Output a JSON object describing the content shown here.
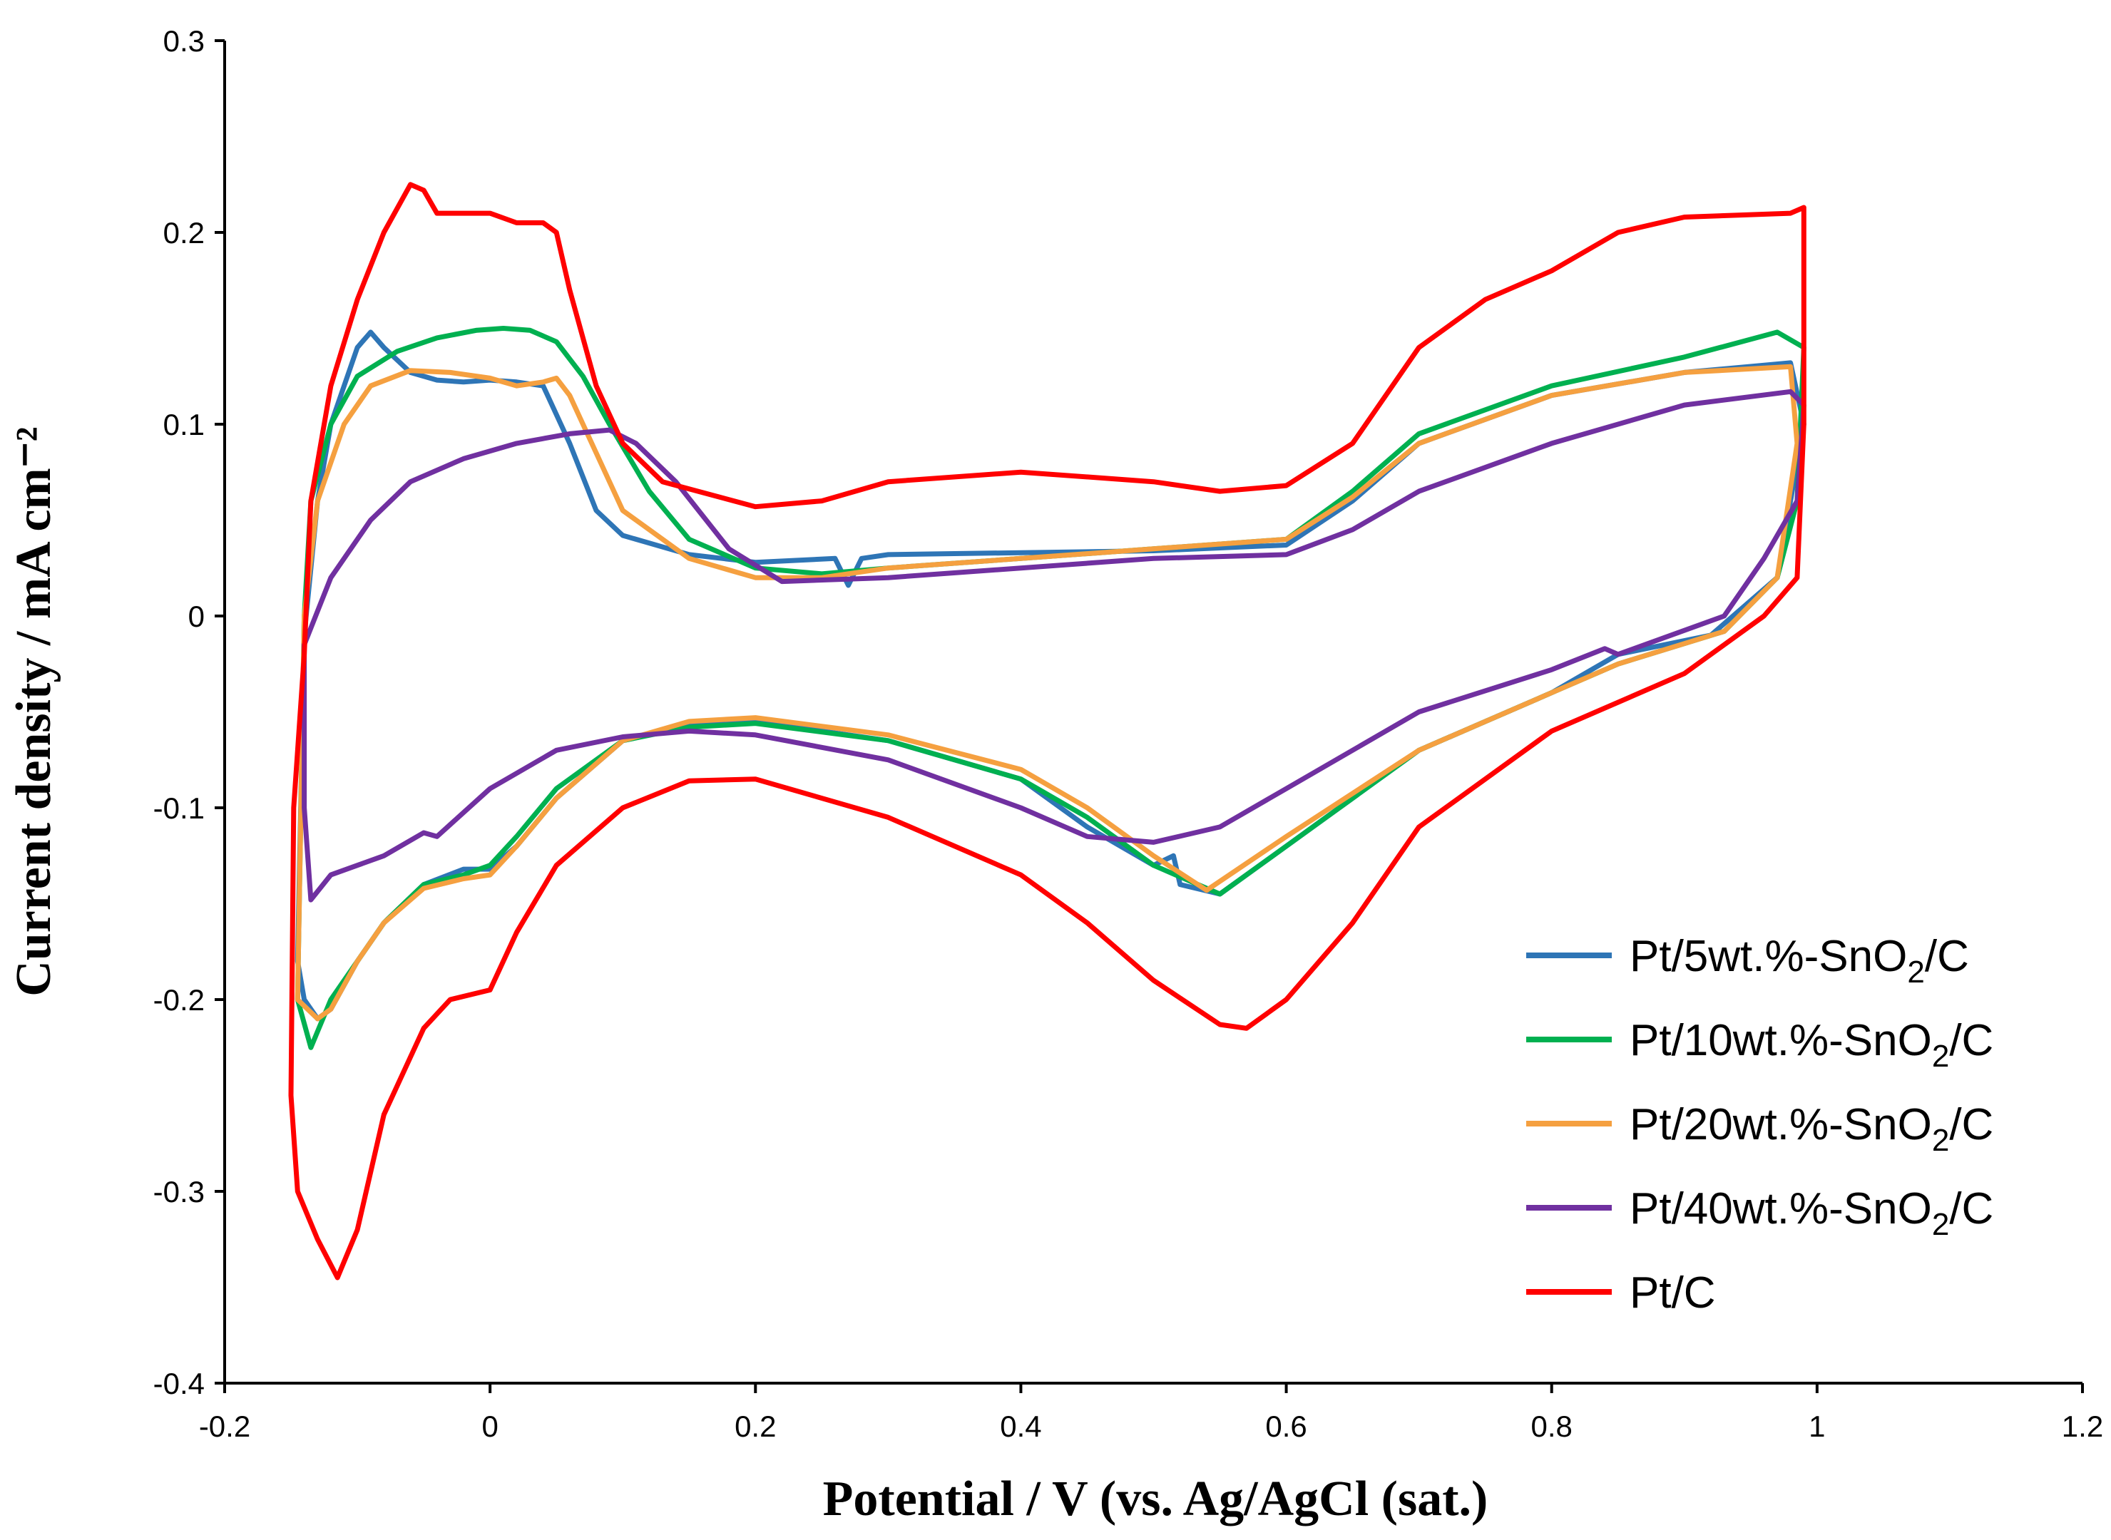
{
  "chart_data": {
    "type": "line",
    "title": "",
    "xlabel": "Potential / V (vs. Ag/AgCl (sat.)",
    "ylabel": "Current density / mA cm⁻²",
    "xlim": [
      -0.2,
      1.2
    ],
    "ylim": [
      -0.4,
      0.3
    ],
    "xticks": [
      "-0.2",
      "0",
      "0.2",
      "0.4",
      "0.6",
      "0.8",
      "1",
      "1.2"
    ],
    "yticks": [
      "0.3",
      "0.2",
      "0.1",
      "0",
      "-0.1",
      "-0.2",
      "-0.3",
      "-0.4"
    ],
    "grid": false,
    "legend_position": "bottom-right",
    "series": [
      {
        "name": "Pt/5wt.%-SnO₂/C",
        "label_main": "Pt/5wt.%-SnO",
        "label_sub": "2",
        "label_tail": "/C",
        "color": "#2e75b6",
        "points": [
          [
            -0.14,
            -0.01
          ],
          [
            -0.13,
            0.06
          ],
          [
            -0.12,
            0.1
          ],
          [
            -0.1,
            0.14
          ],
          [
            -0.09,
            0.148
          ],
          [
            -0.08,
            0.14
          ],
          [
            -0.06,
            0.127
          ],
          [
            -0.04,
            0.123
          ],
          [
            -0.02,
            0.122
          ],
          [
            0,
            0.123
          ],
          [
            0.02,
            0.122
          ],
          [
            0.04,
            0.12
          ],
          [
            0.06,
            0.09
          ],
          [
            0.08,
            0.055
          ],
          [
            0.1,
            0.042
          ],
          [
            0.15,
            0.032
          ],
          [
            0.2,
            0.028
          ],
          [
            0.26,
            0.03
          ],
          [
            0.27,
            0.016
          ],
          [
            0.28,
            0.03
          ],
          [
            0.3,
            0.032
          ],
          [
            0.4,
            0.033
          ],
          [
            0.5,
            0.034
          ],
          [
            0.6,
            0.037
          ],
          [
            0.65,
            0.06
          ],
          [
            0.7,
            0.09
          ],
          [
            0.8,
            0.115
          ],
          [
            0.9,
            0.127
          ],
          [
            0.98,
            0.132
          ],
          [
            0.99,
            0.1
          ],
          [
            0.97,
            0.02
          ],
          [
            0.92,
            -0.01
          ],
          [
            0.85,
            -0.02
          ],
          [
            0.8,
            -0.04
          ],
          [
            0.7,
            -0.07
          ],
          [
            0.6,
            -0.12
          ],
          [
            0.55,
            -0.145
          ],
          [
            0.52,
            -0.14
          ],
          [
            0.515,
            -0.125
          ],
          [
            0.5,
            -0.13
          ],
          [
            0.45,
            -0.11
          ],
          [
            0.4,
            -0.085
          ],
          [
            0.3,
            -0.065
          ],
          [
            0.2,
            -0.055
          ],
          [
            0.15,
            -0.057
          ],
          [
            0.1,
            -0.065
          ],
          [
            0.05,
            -0.095
          ],
          [
            0.02,
            -0.12
          ],
          [
            0,
            -0.132
          ],
          [
            -0.02,
            -0.132
          ],
          [
            -0.05,
            -0.14
          ],
          [
            -0.08,
            -0.16
          ],
          [
            -0.1,
            -0.18
          ],
          [
            -0.12,
            -0.205
          ],
          [
            -0.13,
            -0.21
          ],
          [
            -0.14,
            -0.2
          ],
          [
            -0.145,
            -0.18
          ],
          [
            -0.14,
            -0.01
          ]
        ]
      },
      {
        "name": "Pt/10wt.%-SnO₂/C",
        "label_main": "Pt/10wt.%-SnO",
        "label_sub": "2",
        "label_tail": "/C",
        "color": "#00b050",
        "points": [
          [
            -0.14,
            0.0
          ],
          [
            -0.135,
            0.06
          ],
          [
            -0.12,
            0.1
          ],
          [
            -0.1,
            0.125
          ],
          [
            -0.07,
            0.138
          ],
          [
            -0.04,
            0.145
          ],
          [
            -0.01,
            0.149
          ],
          [
            0.01,
            0.15
          ],
          [
            0.03,
            0.149
          ],
          [
            0.05,
            0.143
          ],
          [
            0.07,
            0.125
          ],
          [
            0.09,
            0.1
          ],
          [
            0.12,
            0.065
          ],
          [
            0.15,
            0.04
          ],
          [
            0.2,
            0.025
          ],
          [
            0.25,
            0.022
          ],
          [
            0.3,
            0.025
          ],
          [
            0.4,
            0.03
          ],
          [
            0.5,
            0.035
          ],
          [
            0.6,
            0.04
          ],
          [
            0.65,
            0.065
          ],
          [
            0.7,
            0.095
          ],
          [
            0.8,
            0.12
          ],
          [
            0.9,
            0.135
          ],
          [
            0.97,
            0.148
          ],
          [
            0.99,
            0.14
          ],
          [
            0.985,
            0.06
          ],
          [
            0.97,
            0.02
          ],
          [
            0.93,
            -0.008
          ],
          [
            0.85,
            -0.025
          ],
          [
            0.8,
            -0.04
          ],
          [
            0.7,
            -0.07
          ],
          [
            0.6,
            -0.12
          ],
          [
            0.55,
            -0.145
          ],
          [
            0.5,
            -0.13
          ],
          [
            0.45,
            -0.105
          ],
          [
            0.4,
            -0.085
          ],
          [
            0.3,
            -0.065
          ],
          [
            0.2,
            -0.056
          ],
          [
            0.15,
            -0.058
          ],
          [
            0.1,
            -0.065
          ],
          [
            0.05,
            -0.09
          ],
          [
            0.02,
            -0.115
          ],
          [
            0,
            -0.13
          ],
          [
            -0.02,
            -0.135
          ],
          [
            -0.05,
            -0.14
          ],
          [
            -0.08,
            -0.16
          ],
          [
            -0.1,
            -0.18
          ],
          [
            -0.12,
            -0.2
          ],
          [
            -0.135,
            -0.225
          ],
          [
            -0.145,
            -0.2
          ],
          [
            -0.14,
            0.0
          ]
        ]
      },
      {
        "name": "Pt/20wt.%-SnO₂/C",
        "label_main": "Pt/20wt.%-SnO",
        "label_sub": "2",
        "label_tail": "/C",
        "color": "#f5a040",
        "points": [
          [
            -0.14,
            0.0
          ],
          [
            -0.13,
            0.06
          ],
          [
            -0.11,
            0.1
          ],
          [
            -0.09,
            0.12
          ],
          [
            -0.06,
            0.128
          ],
          [
            -0.03,
            0.127
          ],
          [
            0,
            0.124
          ],
          [
            0.02,
            0.12
          ],
          [
            0.04,
            0.122
          ],
          [
            0.05,
            0.124
          ],
          [
            0.06,
            0.115
          ],
          [
            0.08,
            0.085
          ],
          [
            0.1,
            0.055
          ],
          [
            0.15,
            0.03
          ],
          [
            0.2,
            0.02
          ],
          [
            0.25,
            0.02
          ],
          [
            0.3,
            0.025
          ],
          [
            0.4,
            0.03
          ],
          [
            0.5,
            0.035
          ],
          [
            0.6,
            0.04
          ],
          [
            0.65,
            0.062
          ],
          [
            0.7,
            0.09
          ],
          [
            0.8,
            0.115
          ],
          [
            0.9,
            0.127
          ],
          [
            0.98,
            0.13
          ],
          [
            0.985,
            0.09
          ],
          [
            0.97,
            0.02
          ],
          [
            0.93,
            -0.008
          ],
          [
            0.85,
            -0.025
          ],
          [
            0.8,
            -0.04
          ],
          [
            0.7,
            -0.07
          ],
          [
            0.6,
            -0.115
          ],
          [
            0.54,
            -0.143
          ],
          [
            0.5,
            -0.125
          ],
          [
            0.45,
            -0.1
          ],
          [
            0.4,
            -0.08
          ],
          [
            0.3,
            -0.062
          ],
          [
            0.2,
            -0.053
          ],
          [
            0.15,
            -0.055
          ],
          [
            0.1,
            -0.065
          ],
          [
            0.05,
            -0.095
          ],
          [
            0.02,
            -0.12
          ],
          [
            0,
            -0.135
          ],
          [
            -0.02,
            -0.137
          ],
          [
            -0.05,
            -0.142
          ],
          [
            -0.08,
            -0.16
          ],
          [
            -0.1,
            -0.18
          ],
          [
            -0.12,
            -0.205
          ],
          [
            -0.13,
            -0.21
          ],
          [
            -0.145,
            -0.2
          ],
          [
            -0.14,
            0.0
          ]
        ]
      },
      {
        "name": "Pt/40wt.%-SnO₂/C",
        "label_main": "Pt/40wt.%-SnO",
        "label_sub": "2",
        "label_tail": "/C",
        "color": "#7030a0",
        "points": [
          [
            -0.14,
            -0.015
          ],
          [
            -0.12,
            0.02
          ],
          [
            -0.09,
            0.05
          ],
          [
            -0.06,
            0.07
          ],
          [
            -0.02,
            0.082
          ],
          [
            0.02,
            0.09
          ],
          [
            0.06,
            0.095
          ],
          [
            0.09,
            0.097
          ],
          [
            0.11,
            0.09
          ],
          [
            0.14,
            0.07
          ],
          [
            0.18,
            0.035
          ],
          [
            0.22,
            0.018
          ],
          [
            0.3,
            0.02
          ],
          [
            0.4,
            0.025
          ],
          [
            0.5,
            0.03
          ],
          [
            0.6,
            0.032
          ],
          [
            0.65,
            0.045
          ],
          [
            0.7,
            0.065
          ],
          [
            0.8,
            0.09
          ],
          [
            0.9,
            0.11
          ],
          [
            0.98,
            0.117
          ],
          [
            0.99,
            0.11
          ],
          [
            0.985,
            0.06
          ],
          [
            0.96,
            0.03
          ],
          [
            0.93,
            0.0
          ],
          [
            0.85,
            -0.02
          ],
          [
            0.84,
            -0.017
          ],
          [
            0.8,
            -0.028
          ],
          [
            0.7,
            -0.05
          ],
          [
            0.6,
            -0.09
          ],
          [
            0.55,
            -0.11
          ],
          [
            0.5,
            -0.118
          ],
          [
            0.45,
            -0.115
          ],
          [
            0.4,
            -0.1
          ],
          [
            0.3,
            -0.075
          ],
          [
            0.2,
            -0.062
          ],
          [
            0.15,
            -0.06
          ],
          [
            0.1,
            -0.063
          ],
          [
            0.05,
            -0.07
          ],
          [
            0,
            -0.09
          ],
          [
            -0.04,
            -0.115
          ],
          [
            -0.05,
            -0.113
          ],
          [
            -0.08,
            -0.125
          ],
          [
            -0.1,
            -0.13
          ],
          [
            -0.12,
            -0.135
          ],
          [
            -0.135,
            -0.148
          ],
          [
            -0.14,
            -0.1
          ],
          [
            -0.14,
            -0.015
          ]
        ]
      },
      {
        "name": "Pt/C",
        "label_main": "Pt/C",
        "label_sub": "",
        "label_tail": "",
        "color": "#ff0000",
        "points": [
          [
            -0.14,
            -0.02
          ],
          [
            -0.135,
            0.06
          ],
          [
            -0.12,
            0.12
          ],
          [
            -0.1,
            0.165
          ],
          [
            -0.08,
            0.2
          ],
          [
            -0.06,
            0.225
          ],
          [
            -0.05,
            0.222
          ],
          [
            -0.04,
            0.21
          ],
          [
            -0.02,
            0.21
          ],
          [
            0,
            0.21
          ],
          [
            0.02,
            0.205
          ],
          [
            0.04,
            0.205
          ],
          [
            0.05,
            0.2
          ],
          [
            0.06,
            0.17
          ],
          [
            0.08,
            0.12
          ],
          [
            0.1,
            0.09
          ],
          [
            0.13,
            0.07
          ],
          [
            0.2,
            0.057
          ],
          [
            0.25,
            0.06
          ],
          [
            0.3,
            0.07
          ],
          [
            0.4,
            0.075
          ],
          [
            0.5,
            0.07
          ],
          [
            0.55,
            0.065
          ],
          [
            0.6,
            0.068
          ],
          [
            0.65,
            0.09
          ],
          [
            0.7,
            0.14
          ],
          [
            0.75,
            0.165
          ],
          [
            0.8,
            0.18
          ],
          [
            0.85,
            0.2
          ],
          [
            0.9,
            0.208
          ],
          [
            0.98,
            0.21
          ],
          [
            0.99,
            0.213
          ],
          [
            0.99,
            0.1
          ],
          [
            0.985,
            0.02
          ],
          [
            0.96,
            0.0
          ],
          [
            0.9,
            -0.03
          ],
          [
            0.8,
            -0.06
          ],
          [
            0.7,
            -0.11
          ],
          [
            0.65,
            -0.16
          ],
          [
            0.6,
            -0.2
          ],
          [
            0.57,
            -0.215
          ],
          [
            0.55,
            -0.213
          ],
          [
            0.5,
            -0.19
          ],
          [
            0.45,
            -0.16
          ],
          [
            0.4,
            -0.135
          ],
          [
            0.3,
            -0.105
          ],
          [
            0.2,
            -0.085
          ],
          [
            0.15,
            -0.086
          ],
          [
            0.1,
            -0.1
          ],
          [
            0.05,
            -0.13
          ],
          [
            0.02,
            -0.165
          ],
          [
            0,
            -0.195
          ],
          [
            -0.03,
            -0.2
          ],
          [
            -0.05,
            -0.215
          ],
          [
            -0.08,
            -0.26
          ],
          [
            -0.1,
            -0.32
          ],
          [
            -0.115,
            -0.345
          ],
          [
            -0.13,
            -0.325
          ],
          [
            -0.145,
            -0.3
          ],
          [
            -0.15,
            -0.25
          ],
          [
            -0.148,
            -0.1
          ],
          [
            -0.14,
            -0.02
          ]
        ]
      }
    ]
  }
}
